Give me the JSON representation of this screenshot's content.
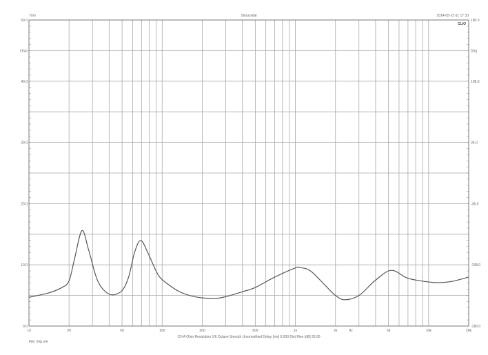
{
  "header": {
    "left": "Trim",
    "center": "Sinusoidal",
    "right": "2014-05-15 01 17 33",
    "logo": "CLIO"
  },
  "footer": {
    "settings": "CH A   Ohm   Resolution 1/6 Octave   Smooth Unsmoothed   Delay [ms] 0.000   Dist Rise [dB] 30.00",
    "file": "File: imp.ore"
  },
  "chart_data": {
    "type": "line",
    "title": "Sinusoidal",
    "xscale": "log",
    "xlim": [
      10,
      20000
    ],
    "ylim": [
      0,
      50
    ],
    "y2lim": [
      -180,
      180
    ],
    "ylabel": "Ohm",
    "y2label": "Deg",
    "xunit_label": "Hz",
    "grid": true,
    "line_color": "#555555",
    "x_tick_labels": [
      {
        "value": 10,
        "label": "10"
      },
      {
        "value": 20,
        "label": "20"
      },
      {
        "value": 50,
        "label": "50"
      },
      {
        "value": 100,
        "label": "100"
      },
      {
        "value": 200,
        "label": "200"
      },
      {
        "value": 500,
        "label": "500"
      },
      {
        "value": 1000,
        "label": "1k"
      },
      {
        "value": 2000,
        "label": "2k"
      },
      {
        "value": 5000,
        "label": "5k"
      },
      {
        "value": 10000,
        "label": "10k"
      },
      {
        "value": 20000,
        "label": "20k"
      }
    ],
    "y_tick_labels": [
      "50.0",
      "40.0",
      "30.0",
      "20.0",
      "10.0",
      "0.0"
    ],
    "y2_tick_labels": [
      "180.0",
      "108.0",
      "36.0",
      "-36.0",
      "-108.0",
      "-180.0"
    ],
    "series": [
      {
        "x": [
          10,
          14,
          17.7,
          20,
          22,
          25,
          28,
          32,
          36,
          42,
          50,
          56,
          62,
          69,
          78,
          90,
          100,
          130,
          160,
          200,
          250,
          300,
          400,
          500,
          700,
          1000,
          1080,
          1300,
          1700,
          2000,
          2340,
          3000,
          4000,
          5260,
          7000,
          10000,
          12000,
          15000,
          20000
        ],
        "y": [
          4.7,
          5.4,
          6.3,
          7.4,
          11.0,
          15.6,
          12.5,
          8.0,
          6.0,
          5.1,
          5.8,
          8.0,
          12.0,
          14.0,
          12.0,
          9.0,
          7.6,
          5.8,
          5.0,
          4.6,
          4.5,
          4.8,
          5.6,
          6.3,
          8.0,
          9.5,
          9.55,
          9.0,
          6.5,
          5.0,
          4.3,
          5.0,
          7.5,
          9.1,
          7.8,
          7.2,
          7.1,
          7.3,
          8.0
        ]
      }
    ]
  }
}
